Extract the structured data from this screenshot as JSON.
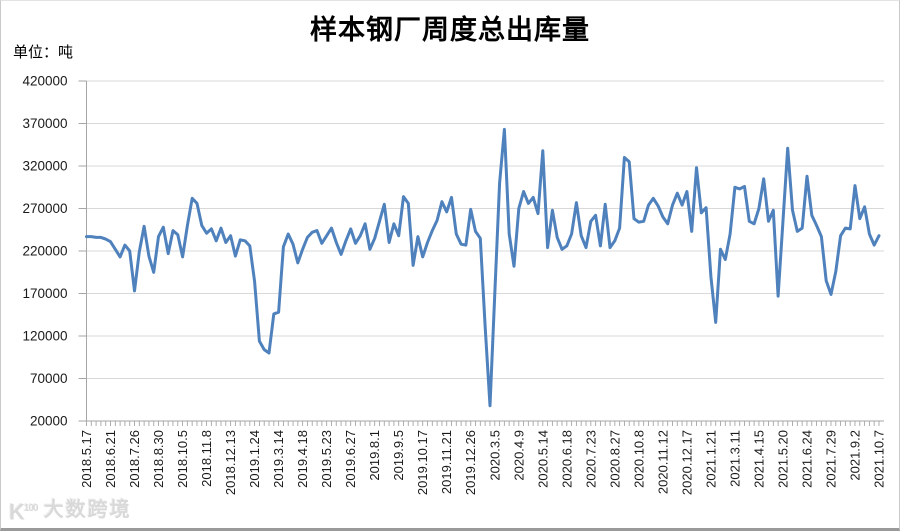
{
  "title": "样本钢厂周度总出库量",
  "unit_label": "单位：吨",
  "watermark": {
    "logo_main": "K",
    "logo_sup": "100",
    "text": "大数跨境"
  },
  "colors": {
    "line": "#4F81BD",
    "grid": "#D9D9D9",
    "axis": "#A6A6A6",
    "tick_text": "#1a1a1a"
  },
  "chart_data": {
    "type": "line",
    "title": "样本钢厂周度总出库量",
    "ylabel": "单位：吨",
    "ylim": [
      20000,
      420000
    ],
    "ytick_step": 50000,
    "yticks": [
      420000,
      370000,
      320000,
      270000,
      220000,
      170000,
      120000,
      70000,
      20000
    ],
    "grid": true,
    "legend": false,
    "x_label_every": 5,
    "x_labels": [
      "2018.5.17",
      "2018.6.21",
      "2018.7.26",
      "2018.8.30",
      "2018.10.5",
      "2018.11.8",
      "2018.12.13",
      "2019.1.24",
      "2019.3.14",
      "2019.4.18",
      "2019.5.23",
      "2019.6.27",
      "2019.8.1",
      "2019.9.5",
      "2019.10.17",
      "2019.11.21",
      "2019.12.26",
      "2020.3.5",
      "2020.4.9",
      "2020.5.14",
      "2020.6.18",
      "2020.7.23",
      "2020.8.27",
      "2020.10.8",
      "2020.11.12",
      "2020.12.17",
      "2021.1.21",
      "2021.3.11",
      "2021.4.15",
      "2021.5.20",
      "2021.6.24",
      "2021.7.29",
      "2021.9.2",
      "2021.10.7"
    ],
    "series": [
      {
        "name": "周度总出库量",
        "color": "#4F81BD",
        "values": [
          237000,
          237000,
          236000,
          236000,
          234000,
          231000,
          222000,
          213000,
          227000,
          220000,
          173000,
          219000,
          249000,
          214000,
          195000,
          237000,
          248000,
          217000,
          244000,
          239000,
          213000,
          250000,
          282000,
          276000,
          250000,
          241000,
          246000,
          232000,
          247000,
          230000,
          238000,
          214000,
          233000,
          232000,
          226000,
          184000,
          114000,
          104000,
          100000,
          146000,
          148000,
          225000,
          240000,
          228000,
          206000,
          222000,
          236000,
          242000,
          244000,
          229000,
          238000,
          247000,
          230000,
          216000,
          232000,
          246000,
          229000,
          238000,
          252000,
          222000,
          235000,
          255000,
          275000,
          230000,
          252000,
          238000,
          284000,
          276000,
          203000,
          237000,
          213000,
          230000,
          244000,
          256000,
          278000,
          266000,
          283000,
          240000,
          228000,
          227000,
          269000,
          243000,
          235000,
          130000,
          38000,
          170000,
          300000,
          363000,
          240000,
          202000,
          270000,
          290000,
          276000,
          283000,
          264000,
          338000,
          224000,
          268000,
          236000,
          222000,
          226000,
          240000,
          277000,
          238000,
          224000,
          255000,
          262000,
          226000,
          275000,
          224000,
          232000,
          247000,
          330000,
          325000,
          258000,
          254000,
          255000,
          274000,
          282000,
          273000,
          260000,
          252000,
          274000,
          288000,
          274000,
          290000,
          243000,
          318000,
          265000,
          271000,
          190000,
          136000,
          222000,
          210000,
          240000,
          295000,
          293000,
          296000,
          255000,
          252000,
          270000,
          305000,
          255000,
          268000,
          167000,
          254000,
          341000,
          268000,
          243000,
          247000,
          308000,
          262000,
          250000,
          237000,
          185000,
          169000,
          196000,
          238000,
          247000,
          246000,
          297000,
          258000,
          272000,
          240000,
          227000,
          238000
        ]
      }
    ]
  }
}
